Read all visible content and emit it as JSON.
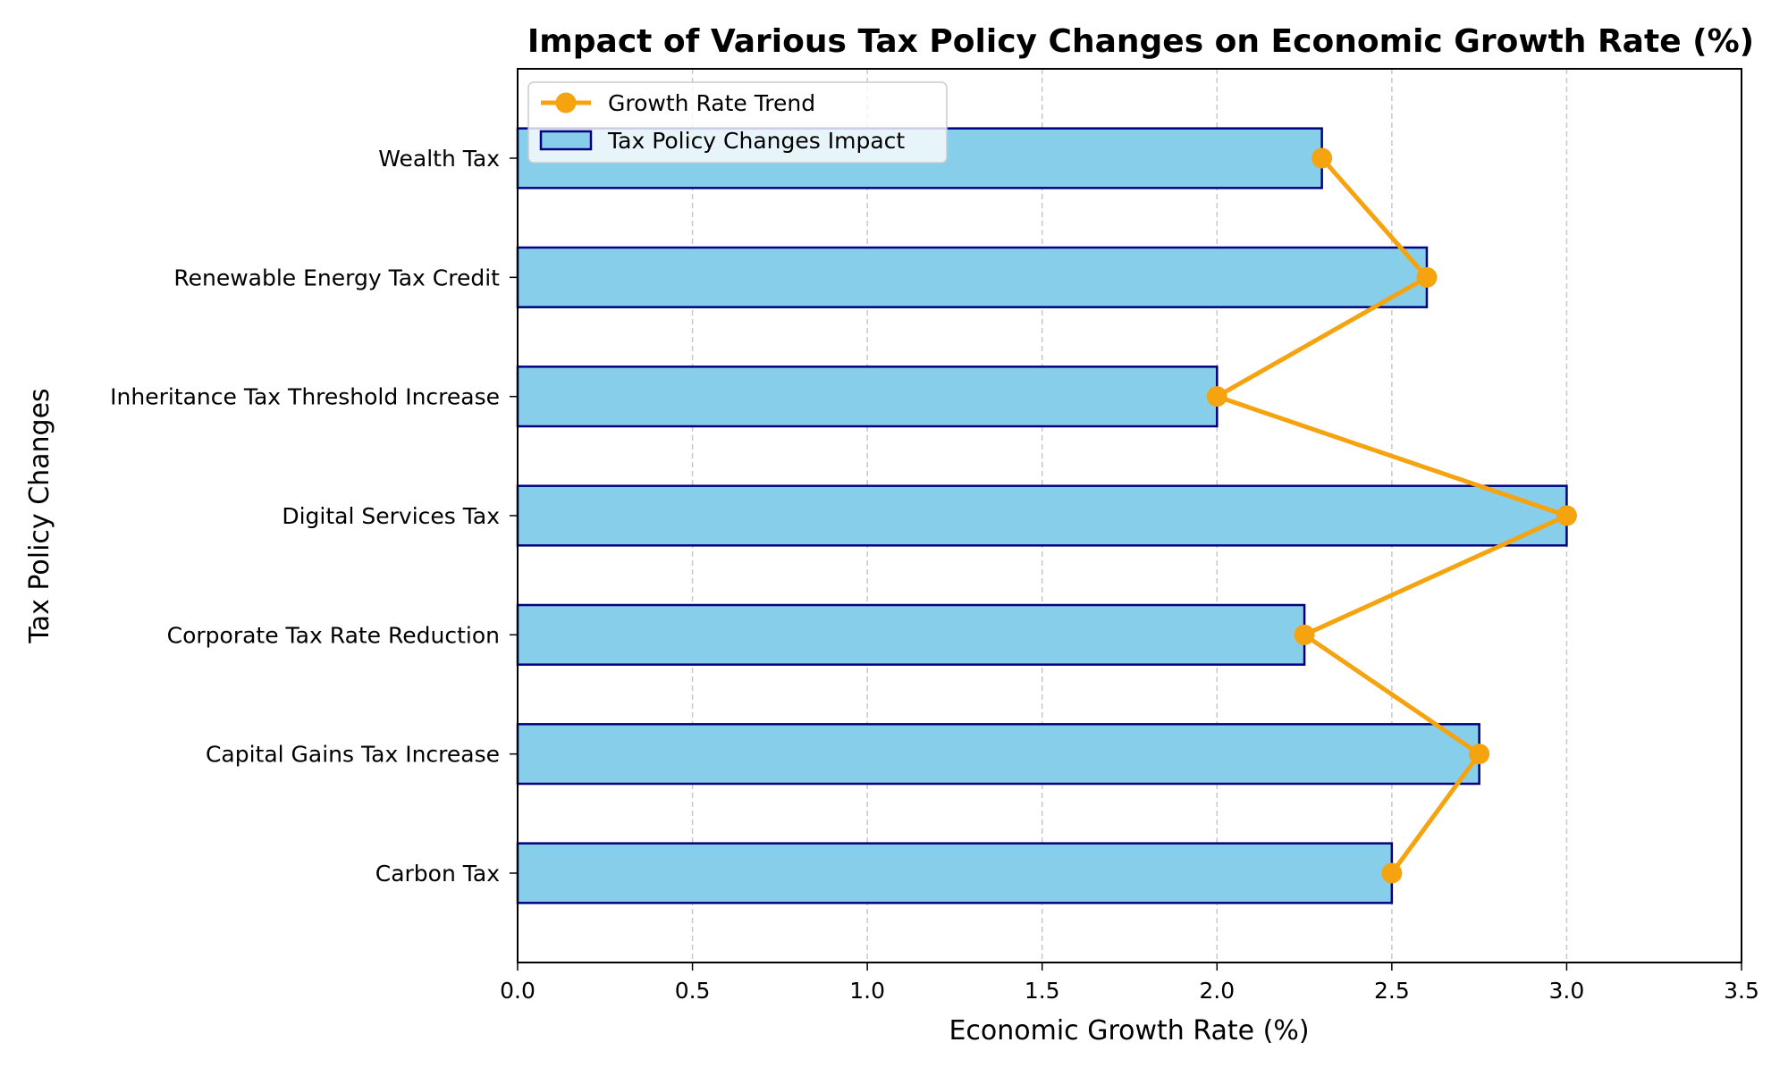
{
  "chart_data": {
    "type": "bar",
    "orientation": "horizontal",
    "title": "Impact of Various Tax Policy Changes on Economic Growth Rate (%)",
    "xlabel": "Economic Growth Rate (%)",
    "ylabel": "Tax Policy Changes",
    "categories": [
      "Carbon Tax",
      "Capital Gains Tax Increase",
      "Corporate Tax Rate Reduction",
      "Digital Services Tax",
      "Inheritance Tax Threshold Increase",
      "Renewable Energy Tax Credit",
      "Wealth Tax"
    ],
    "series": [
      {
        "name": "Tax Policy Changes Impact",
        "kind": "bar",
        "values": [
          2.5,
          2.75,
          2.25,
          3.0,
          2.0,
          2.6,
          2.3
        ],
        "color": "#87CEEB",
        "edge_color": "#000080"
      },
      {
        "name": "Growth Rate Trend",
        "kind": "line",
        "values": [
          2.5,
          2.75,
          2.25,
          3.0,
          2.0,
          2.6,
          2.3
        ],
        "color": "#F5A30E"
      }
    ],
    "xlim": [
      0,
      3.5
    ],
    "xticks": [
      "0.0",
      "0.5",
      "1.0",
      "1.5",
      "2.0",
      "2.5",
      "3.0",
      "3.5"
    ],
    "grid": "x-dashed",
    "legend": "top-left"
  }
}
